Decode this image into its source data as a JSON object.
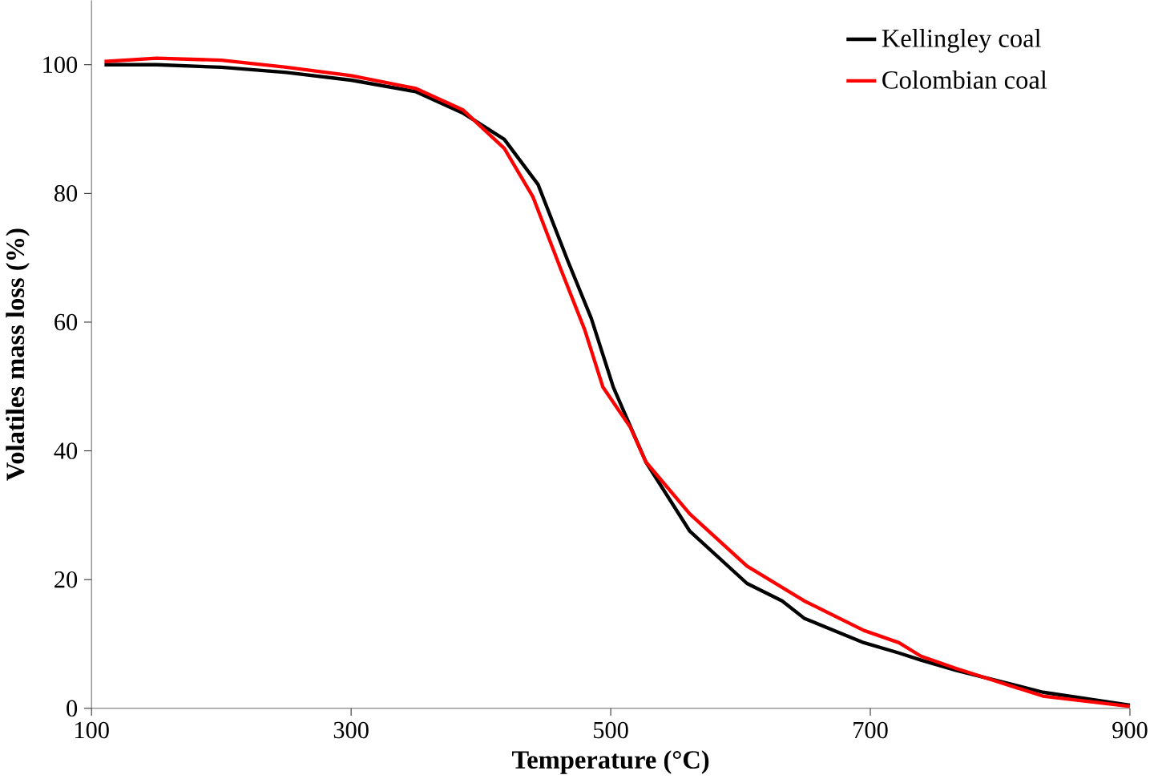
{
  "chart_data": {
    "type": "line",
    "xlabel": "Temperature (°C)",
    "ylabel": "Volatiles mass loss (%)",
    "xlim": [
      100,
      900
    ],
    "ylim": [
      0,
      110
    ],
    "xticks": [
      100,
      300,
      500,
      700,
      900
    ],
    "yticks": [
      0,
      20,
      40,
      60,
      80,
      100
    ],
    "grid": false,
    "legend": "top right",
    "marker": "none",
    "line_style": "solid",
    "series": [
      {
        "name": "Kellingley coal",
        "color": "#000000",
        "x": [
          110,
          150,
          200,
          250,
          300,
          350,
          386,
          418,
          444,
          467,
          485,
          502,
          527,
          561,
          605,
          632,
          649,
          695,
          722,
          739,
          766,
          833,
          900
        ],
        "values": [
          100,
          100,
          99.6,
          98.8,
          97.6,
          95.8,
          92.5,
          88.4,
          81.4,
          69.5,
          60.6,
          49.9,
          38.3,
          27.5,
          19.4,
          16.7,
          14,
          10.2,
          8.6,
          7.5,
          5.9,
          2.5,
          0.5
        ]
      },
      {
        "name": "Colombian coal",
        "color": "#ff0000",
        "x": [
          110,
          150,
          200,
          250,
          300,
          350,
          386,
          418,
          440,
          462,
          480,
          494,
          515,
          527,
          561,
          605,
          649,
          695,
          722,
          739,
          766,
          833,
          900
        ],
        "values": [
          100.5,
          101,
          100.7,
          99.6,
          98.3,
          96.3,
          93,
          87,
          79.5,
          68,
          58.8,
          49.9,
          43.7,
          38.3,
          30.2,
          22.1,
          16.7,
          12.1,
          10.2,
          8.1,
          6.2,
          1.9,
          0.3
        ]
      }
    ]
  }
}
